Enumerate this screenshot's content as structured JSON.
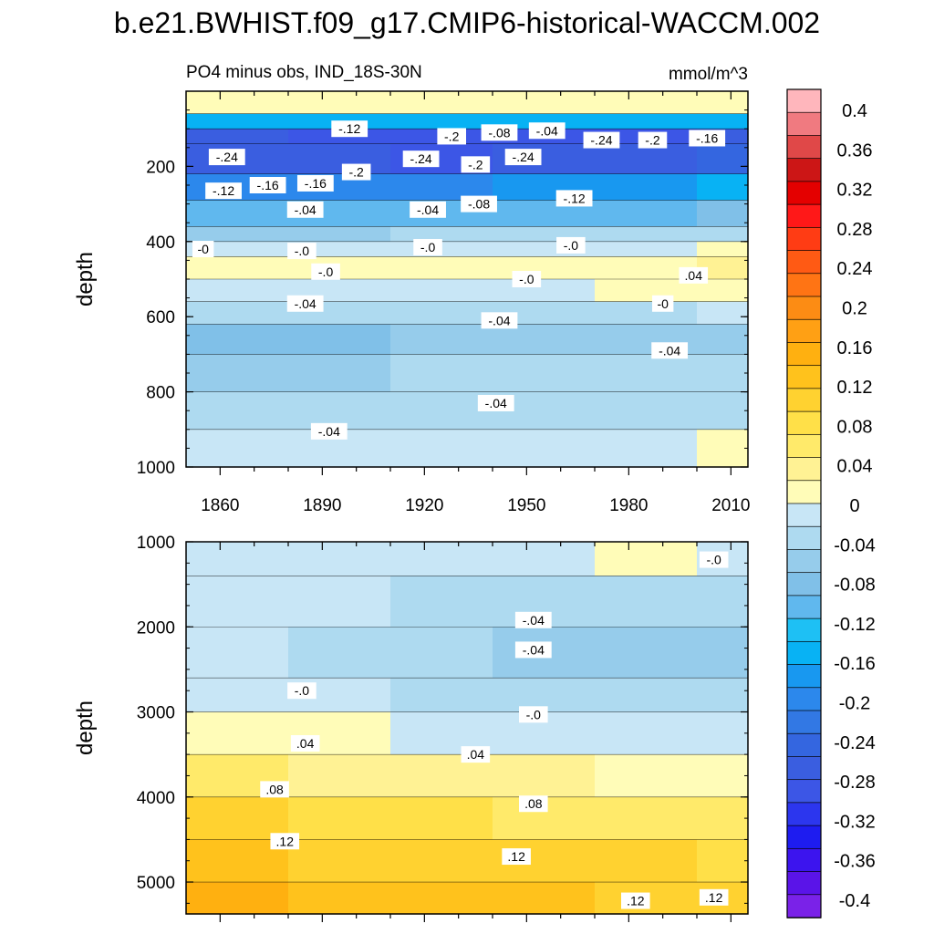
{
  "title": "b.e21.BWHIST.f09_g17.CMIP6-historical-WACCM.002",
  "subtitle_left": "PO4 minus obs, IND_18S-30N",
  "units": "mmol/m^3",
  "colorbar": {
    "labels": [
      "0.4",
      "0.36",
      "0.32",
      "0.28",
      "0.24",
      "0.2",
      "0.16",
      "0.12",
      "0.08",
      "0.04",
      "0",
      "-0.04",
      "-0.08",
      "-0.12",
      "-0.16",
      "-0.2",
      "-0.24",
      "-0.28",
      "-0.32",
      "-0.36",
      "-0.4"
    ],
    "colors": [
      "#ffb6bc",
      "#f07a80",
      "#e04848",
      "#cc1616",
      "#e40000",
      "#ff1818",
      "#ff3c14",
      "#ff5a14",
      "#ff7414",
      "#fc8c14",
      "#ffa014",
      "#ffb010",
      "#ffc21c",
      "#ffd230",
      "#ffe048",
      "#ffea6a",
      "#fff294",
      "#fffcb8",
      "#c8e6f6",
      "#aedaf0",
      "#96cceb",
      "#80c0e8",
      "#60b8ee",
      "#1ec0f4",
      "#08b2f4",
      "#1898f0",
      "#2c88ec",
      "#3278e4",
      "#3466e0",
      "#3a5ee0",
      "#3c56e6",
      "#2c36ee",
      "#1e1cf0",
      "#3c14ee",
      "#5a14e8",
      "#7a22e8"
    ]
  },
  "chart_data": [
    {
      "type": "heatmap",
      "panel": "upper",
      "variable": "PO4 minus obs, IND_18S-30N",
      "units": "mmol/m^3",
      "xlabel": "",
      "ylabel": "depth",
      "xticks": [
        "1860",
        "1890",
        "1920",
        "1950",
        "1980",
        "2010"
      ],
      "yticks": [
        "200",
        "400",
        "600",
        "800",
        "1000"
      ],
      "xlim": [
        1850,
        2015
      ],
      "ylim": [
        1000,
        0
      ],
      "x_edges": [
        1850,
        1880,
        1910,
        1940,
        1970,
        2000,
        2015
      ],
      "depth_edges": [
        0,
        60,
        100,
        140,
        220,
        290,
        360,
        400,
        440,
        500,
        560,
        620,
        700,
        800,
        900,
        1000
      ],
      "values": [
        [
          0.01,
          0.01,
          0.01,
          0.01,
          0.01,
          0.01
        ],
        [
          -0.14,
          -0.15,
          -0.15,
          -0.14,
          -0.15,
          -0.14
        ],
        [
          -0.26,
          -0.28,
          -0.28,
          -0.27,
          -0.28,
          -0.26
        ],
        [
          -0.25,
          -0.26,
          -0.27,
          -0.25,
          -0.26,
          -0.24
        ],
        [
          -0.18,
          -0.19,
          -0.18,
          -0.16,
          -0.17,
          -0.15
        ],
        [
          -0.11,
          -0.11,
          -0.1,
          -0.09,
          -0.1,
          -0.08
        ],
        [
          -0.05,
          -0.05,
          -0.04,
          -0.04,
          -0.04,
          -0.03
        ],
        [
          -0.02,
          -0.01,
          -0.01,
          -0.01,
          0.0,
          0.01
        ],
        [
          0.01,
          0.01,
          0.02,
          0.01,
          0.02,
          0.04
        ],
        [
          -0.01,
          -0.01,
          0.0,
          -0.01,
          0.01,
          0.02
        ],
        [
          -0.04,
          -0.04,
          -0.03,
          -0.03,
          -0.03,
          -0.02
        ],
        [
          -0.07,
          -0.07,
          -0.06,
          -0.06,
          -0.05,
          -0.05
        ],
        [
          -0.05,
          -0.05,
          -0.04,
          -0.04,
          -0.04,
          -0.04
        ],
        [
          -0.04,
          -0.04,
          -0.03,
          -0.03,
          -0.03,
          -0.03
        ],
        [
          -0.02,
          -0.02,
          -0.02,
          -0.01,
          -0.01,
          0.01
        ]
      ],
      "contour_labels": [
        {
          "text": "-.12",
          "x": 1898,
          "depth": 100
        },
        {
          "text": "-.2",
          "x": 1928,
          "depth": 120
        },
        {
          "text": "-.08",
          "x": 1942,
          "depth": 110
        },
        {
          "text": "-.04",
          "x": 1956,
          "depth": 105
        },
        {
          "text": "-.24",
          "x": 1972,
          "depth": 130
        },
        {
          "text": "-.2",
          "x": 1987,
          "depth": 130
        },
        {
          "text": "-.16",
          "x": 2003,
          "depth": 125
        },
        {
          "text": "-.24",
          "x": 1862,
          "depth": 175
        },
        {
          "text": "-.16",
          "x": 1874,
          "depth": 250
        },
        {
          "text": "-.16",
          "x": 1888,
          "depth": 245
        },
        {
          "text": "-.12",
          "x": 1861,
          "depth": 265
        },
        {
          "text": "-.2",
          "x": 1900,
          "depth": 215
        },
        {
          "text": "-.24",
          "x": 1919,
          "depth": 180
        },
        {
          "text": "-.2",
          "x": 1935,
          "depth": 195
        },
        {
          "text": "-.24",
          "x": 1949,
          "depth": 175
        },
        {
          "text": "-.04",
          "x": 1885,
          "depth": 315
        },
        {
          "text": "-.04",
          "x": 1921,
          "depth": 315
        },
        {
          "text": "-.08",
          "x": 1936,
          "depth": 300
        },
        {
          "text": "-.12",
          "x": 1964,
          "depth": 285
        },
        {
          "text": "-0",
          "x": 1855,
          "depth": 420
        },
        {
          "text": "-.0",
          "x": 1884,
          "depth": 425
        },
        {
          "text": "-.0",
          "x": 1921,
          "depth": 415
        },
        {
          "text": "-.0",
          "x": 1963,
          "depth": 410
        },
        {
          "text": "-.0",
          "x": 1891,
          "depth": 480
        },
        {
          "text": "-.0",
          "x": 1950,
          "depth": 500
        },
        {
          "text": ".04",
          "x": 1999,
          "depth": 490
        },
        {
          "text": "-.04",
          "x": 1885,
          "depth": 565
        },
        {
          "text": "-.04",
          "x": 1942,
          "depth": 610
        },
        {
          "text": "-0",
          "x": 1990,
          "depth": 565
        },
        {
          "text": "-.04",
          "x": 1992,
          "depth": 690
        },
        {
          "text": "-.04",
          "x": 1941,
          "depth": 830
        },
        {
          "text": "-.04",
          "x": 1892,
          "depth": 905
        }
      ]
    },
    {
      "type": "heatmap",
      "panel": "lower",
      "variable": "PO4 minus obs, IND_18S-30N",
      "units": "mmol/m^3",
      "xlabel": "",
      "ylabel": "depth",
      "yticks": [
        "1000",
        "2000",
        "3000",
        "4000",
        "5000"
      ],
      "xlim": [
        1850,
        2015
      ],
      "ylim": [
        5375,
        1000
      ],
      "x_edges": [
        1850,
        1880,
        1910,
        1940,
        1970,
        2000,
        2015
      ],
      "depth_edges": [
        1000,
        1400,
        2000,
        2600,
        3000,
        3500,
        4000,
        4500,
        5000,
        5375
      ],
      "values": [
        [
          -0.01,
          -0.01,
          -0.01,
          0.0,
          0.01,
          0.0
        ],
        [
          -0.02,
          -0.02,
          -0.03,
          -0.03,
          -0.03,
          -0.03
        ],
        [
          -0.02,
          -0.03,
          -0.04,
          -0.05,
          -0.05,
          -0.05
        ],
        [
          -0.01,
          -0.02,
          -0.03,
          -0.03,
          -0.04,
          -0.04
        ],
        [
          0.02,
          0.01,
          0.0,
          0.0,
          -0.01,
          -0.01
        ],
        [
          0.05,
          0.04,
          0.03,
          0.03,
          0.02,
          0.02
        ],
        [
          0.09,
          0.08,
          0.07,
          0.06,
          0.05,
          0.05
        ],
        [
          0.12,
          0.11,
          0.1,
          0.09,
          0.09,
          0.08
        ],
        [
          0.14,
          0.13,
          0.12,
          0.12,
          0.11,
          0.11
        ]
      ],
      "contour_labels": [
        {
          "text": "-.0",
          "x": 2005,
          "depth": 1210
        },
        {
          "text": "-.04",
          "x": 1952,
          "depth": 1920
        },
        {
          "text": "-.04",
          "x": 1952,
          "depth": 2270
        },
        {
          "text": "-.0",
          "x": 1884,
          "depth": 2750
        },
        {
          "text": "-.0",
          "x": 1952,
          "depth": 3030
        },
        {
          "text": ".04",
          "x": 1885,
          "depth": 3370
        },
        {
          "text": ".04",
          "x": 1935,
          "depth": 3500
        },
        {
          "text": ".08",
          "x": 1876,
          "depth": 3910
        },
        {
          "text": ".08",
          "x": 1952,
          "depth": 4080
        },
        {
          "text": ".12",
          "x": 1879,
          "depth": 4520
        },
        {
          "text": ".12",
          "x": 1947,
          "depth": 4700
        },
        {
          "text": ".12",
          "x": 1982,
          "depth": 5220
        },
        {
          "text": ".12",
          "x": 2005,
          "depth": 5180
        }
      ]
    }
  ]
}
